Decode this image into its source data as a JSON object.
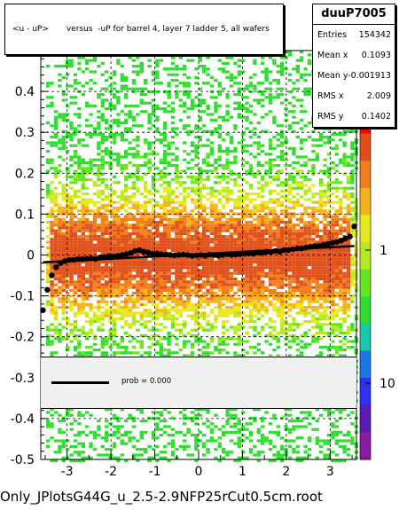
{
  "title": "<u - uP>       versus  -uP for barrel 4, layer 7 ladder 5, all wafers",
  "stats": {
    "name": "duuP7005",
    "rows": [
      {
        "label": "Entries",
        "value": "154342"
      },
      {
        "label": "Mean x",
        "value": "0.1093"
      },
      {
        "label": "Mean y",
        "value": "-0.001913"
      },
      {
        "label": "RMS x",
        "value": "2.009"
      },
      {
        "label": "RMS y",
        "value": "0.1402"
      }
    ]
  },
  "legend": {
    "label": "prob = 0.000"
  },
  "footer": "Only_JPlotsG44G_u_2.5-2.9NFP25rCut0.5cm.root",
  "colors": {
    "fit_line": "#000000",
    "legend_bg": "#f0f0f0",
    "grid": "#000000"
  },
  "chart_data": {
    "type": "heatmap",
    "xlim": [
      -3.6,
      3.6
    ],
    "ylim": [
      -0.5,
      0.5
    ],
    "x_ticks": [
      -3,
      -2,
      -1,
      0,
      1,
      2,
      3
    ],
    "y_ticks": [
      -0.5,
      -0.4,
      -0.3,
      -0.2,
      -0.1,
      0,
      0.1,
      0.2,
      0.3,
      0.4
    ],
    "y_tick_labels": [
      "-0.5",
      "-0.4",
      "-0.3",
      "-0.2",
      "-0.1",
      "0",
      "0.1",
      "0.2",
      "0.3",
      "0.4"
    ],
    "grid": true,
    "colorbar": {
      "scale": "log",
      "tick_values": [
        1,
        10
      ],
      "tick_labels": [
        "1",
        "10"
      ]
    },
    "profile": {
      "x": [
        -3.55,
        -3.45,
        -3.35,
        -3.25,
        -3.15,
        -3.05,
        -2.95,
        -2.85,
        -2.75,
        -2.65,
        -2.55,
        -2.45,
        -2.35,
        -2.25,
        -2.15,
        -2.05,
        -1.95,
        -1.85,
        -1.75,
        -1.65,
        -1.55,
        -1.45,
        -1.35,
        -1.25,
        -1.15,
        -1.05,
        -0.95,
        -0.85,
        -0.75,
        -0.65,
        -0.55,
        -0.45,
        -0.35,
        -0.25,
        -0.15,
        -0.05,
        0.05,
        0.15,
        0.25,
        0.35,
        0.45,
        0.55,
        0.65,
        0.75,
        0.85,
        0.95,
        1.05,
        1.15,
        1.25,
        1.35,
        1.45,
        1.55,
        1.65,
        1.75,
        1.85,
        1.95,
        2.05,
        2.15,
        2.25,
        2.35,
        2.45,
        2.55,
        2.65,
        2.75,
        2.85,
        2.95,
        3.05,
        3.15,
        3.25,
        3.35,
        3.45,
        3.55
      ],
      "y": [
        -0.135,
        -0.085,
        -0.05,
        -0.03,
        -0.02,
        -0.015,
        -0.012,
        -0.012,
        -0.01,
        -0.01,
        -0.009,
        -0.008,
        -0.01,
        -0.006,
        -0.005,
        -0.003,
        -0.004,
        -0.002,
        0.0,
        0.002,
        0.005,
        0.01,
        0.012,
        0.008,
        0.006,
        0.003,
        0.004,
        0.002,
        0.001,
        0.0,
        -0.001,
        0.0,
        0.001,
        0.0,
        -0.002,
        -0.001,
        0.0,
        -0.002,
        0.001,
        0.0,
        -0.002,
        0.0,
        0.002,
        0.0,
        0.001,
        0.002,
        0.003,
        0.004,
        0.003,
        0.006,
        0.005,
        0.008,
        0.007,
        0.01,
        0.008,
        0.012,
        0.012,
        0.014,
        0.016,
        0.016,
        0.018,
        0.02,
        0.022,
        0.022,
        0.025,
        0.027,
        0.03,
        0.032,
        0.035,
        0.04,
        0.045,
        0.07
      ]
    },
    "fit_line": {
      "x": [
        -3.55,
        3.55
      ],
      "y": [
        -0.018,
        0.022
      ]
    }
  }
}
